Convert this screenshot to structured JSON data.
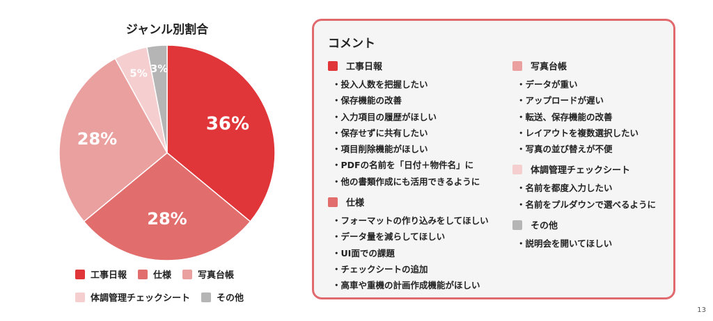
{
  "chart_data": {
    "type": "pie",
    "title": "ジャンル別割合",
    "categories": [
      "工事日報",
      "仕様",
      "写真台帳",
      "体調管理チェックシート",
      "その他"
    ],
    "values": [
      36,
      28,
      28,
      5,
      3
    ],
    "labels": [
      "36%",
      "28%",
      "28%",
      "5%",
      "3%"
    ],
    "colors": [
      "#e0363a",
      "#e26d6d",
      "#eba0a0",
      "#f5cfcf",
      "#b5b5b5"
    ],
    "legend_placement": "bottom"
  },
  "legend": {
    "row1": [
      "工事日報",
      "仕様",
      "写真台帳"
    ],
    "row2": [
      "体調管理チェックシート",
      "その他"
    ]
  },
  "comment": {
    "title": "コメント",
    "sections": [
      {
        "label": "工事日報",
        "color": "#e0363a",
        "items": [
          "投入人数を把握したい",
          "保存機能の改善",
          "入力項目の履歴がほしい",
          "保存せずに共有したい",
          "項目削除機能がほしい",
          "PDFの名前を「日付＋物件名」に",
          "他の書類作成にも活用できるように"
        ]
      },
      {
        "label": "仕様",
        "color": "#e26d6d",
        "items": [
          "フォーマットの作り込みをしてほしい",
          "データ量を減らしてほしい",
          "UI面での課題",
          "チェックシートの追加",
          "高車や重機の計画作成機能がほしい"
        ]
      },
      {
        "label": "写真台帳",
        "color": "#eba0a0",
        "items": [
          "データが重い",
          "アップロードが遅い",
          "転送、保存機能の改善",
          "レイアウトを複数選択したい",
          "写真の並び替えが不便"
        ]
      },
      {
        "label": "体調管理チェックシート",
        "color": "#f5cfcf",
        "items": [
          "名前を都度入力したい",
          "名前をプルダウンで選べるように"
        ]
      },
      {
        "label": "その他",
        "color": "#b5b5b5",
        "items": [
          "説明会を開いてほしい"
        ]
      }
    ]
  },
  "page_number": "13"
}
